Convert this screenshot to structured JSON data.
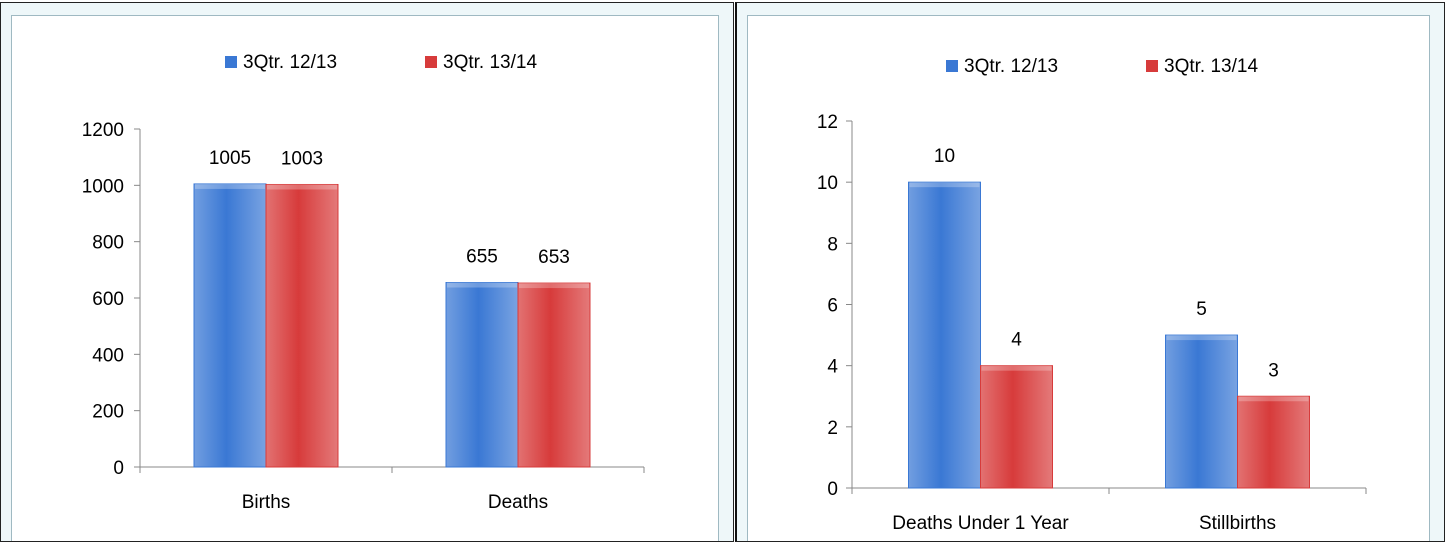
{
  "colors": {
    "series_1": "#3a78d4",
    "series_2": "#d73b3b",
    "axis": "#888888",
    "panel_bg": "#eef7f9"
  },
  "chart_data": [
    {
      "type": "bar",
      "categories": [
        "Births",
        "Deaths"
      ],
      "series": [
        {
          "name": "3Qtr. 12/13",
          "values": [
            1005,
            655
          ]
        },
        {
          "name": "3Qtr. 13/14",
          "values": [
            1003,
            653
          ]
        }
      ],
      "y_ticks": [
        "0",
        "200",
        "400",
        "600",
        "800",
        "1000",
        "1200"
      ],
      "ylim": [
        0,
        1200
      ],
      "title": "",
      "xlabel": "",
      "ylabel": "",
      "legend_position": "top",
      "grid": false,
      "data_labels": true
    },
    {
      "type": "bar",
      "categories": [
        "Deaths Under 1 Year",
        "Stillbirths"
      ],
      "series": [
        {
          "name": "3Qtr. 12/13",
          "values": [
            10,
            5
          ]
        },
        {
          "name": "3Qtr. 13/14",
          "values": [
            4,
            3
          ]
        }
      ],
      "y_ticks": [
        "0",
        "2",
        "4",
        "6",
        "8",
        "10",
        "12"
      ],
      "ylim": [
        0,
        12
      ],
      "title": "",
      "xlabel": "",
      "ylabel": "",
      "legend_position": "top",
      "grid": false,
      "data_labels": true
    }
  ]
}
